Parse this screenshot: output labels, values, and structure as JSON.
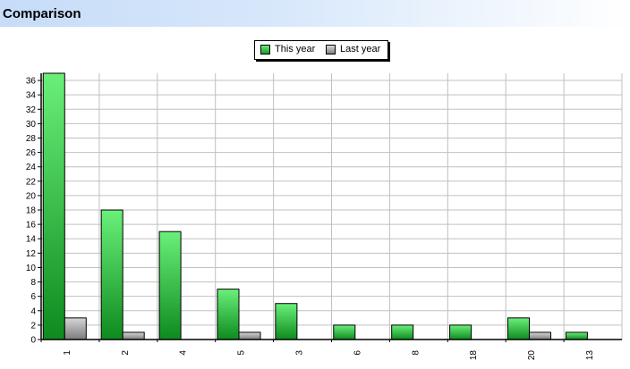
{
  "header": {
    "title": "Comparison"
  },
  "colors": {
    "this_year": "#2ecc40",
    "last_year": "#a0a0a0",
    "grid": "#c0c0c0"
  },
  "chart_data": {
    "type": "bar",
    "title": "",
    "xlabel": "",
    "ylabel": "",
    "categories": [
      "1",
      "2",
      "4",
      "5",
      "3",
      "6",
      "8",
      "18",
      "20",
      "13"
    ],
    "series": [
      {
        "name": "This year",
        "values": [
          37,
          18,
          15,
          7,
          5,
          2,
          2,
          2,
          3,
          1
        ]
      },
      {
        "name": "Last year",
        "values": [
          3,
          1,
          0,
          1,
          0,
          0,
          0,
          0,
          1,
          0
        ]
      }
    ],
    "ylim": [
      0,
      37
    ],
    "y_ticks": [
      0,
      2,
      4,
      6,
      8,
      10,
      12,
      14,
      16,
      18,
      20,
      22,
      24,
      26,
      28,
      30,
      32,
      34,
      36
    ],
    "grid": true,
    "legend": "top-center"
  }
}
